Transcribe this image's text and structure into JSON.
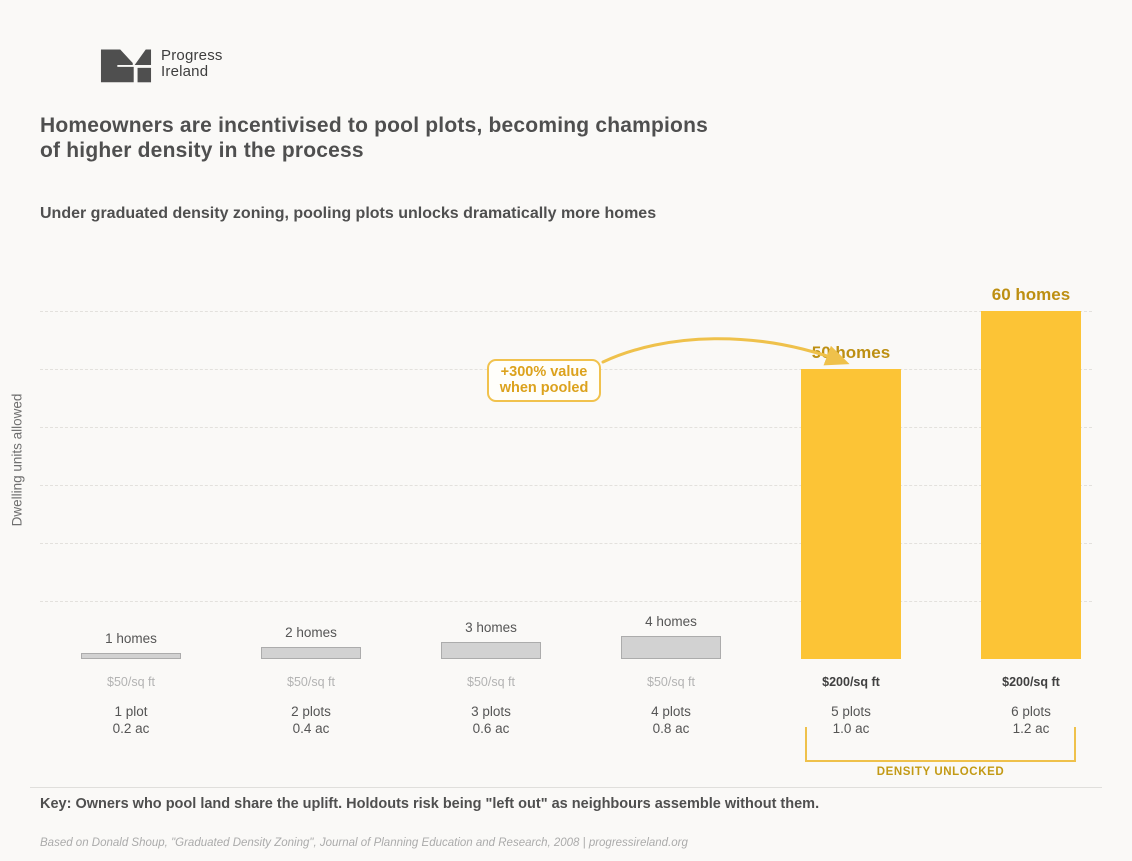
{
  "brand": {
    "name_line1": "Progress",
    "name_line2": "Ireland",
    "logo_color": "#4F4F4F"
  },
  "title": "Homeowners are incentivised to pool plots, becoming champions of higher density in the process",
  "subtitle": "Under graduated density zoning, pooling plots unlocks dramatically more homes",
  "chart_data": {
    "type": "bar",
    "title": "Homeowners are incentivised to pool plots, becoming champions of higher density in the process",
    "subtitle": "Under graduated density zoning, pooling plots unlocks dramatically more homes",
    "ylabel": "Dwelling units allowed",
    "xlabel": "",
    "ylim": [
      0,
      60
    ],
    "gridline_values": [
      10,
      20,
      30,
      40,
      50,
      60
    ],
    "grid": "dashed",
    "categories": [
      "1 plot 0.2 ac",
      "2 plots 0.4 ac",
      "3 plots 0.6 ac",
      "4 plots 0.8 ac",
      "5 plots 1.0 ac",
      "6 plots 1.2 ac"
    ],
    "values": [
      1,
      2,
      3,
      4,
      50,
      60
    ],
    "bars": [
      {
        "homes_label": "1 homes",
        "value": 1,
        "price": "$50/sq ft",
        "plots": "1 plot",
        "acres": "0.2 ac",
        "pooled": false
      },
      {
        "homes_label": "2 homes",
        "value": 2,
        "price": "$50/sq ft",
        "plots": "2 plots",
        "acres": "0.4 ac",
        "pooled": false
      },
      {
        "homes_label": "3 homes",
        "value": 3,
        "price": "$50/sq ft",
        "plots": "3 plots",
        "acres": "0.6 ac",
        "pooled": false
      },
      {
        "homes_label": "4 homes",
        "value": 4,
        "price": "$50/sq ft",
        "plots": "4 plots",
        "acres": "0.8 ac",
        "pooled": false
      },
      {
        "homes_label": "50 homes",
        "value": 50,
        "price": "$200/sq ft",
        "plots": "5 plots",
        "acres": "1.0 ac",
        "pooled": true
      },
      {
        "homes_label": "60 homes",
        "value": 60,
        "price": "$200/sq ft",
        "plots": "6 plots",
        "acres": "1.2 ac",
        "pooled": true
      }
    ],
    "bar_color_default": "#D2D2D2",
    "bar_color_pooled": "#FCC436",
    "accent_gold": "#EFC14B",
    "accent_gold_text": "#BD8F12"
  },
  "annotation": {
    "line1": "+300% value",
    "line2": "when pooled"
  },
  "bracket": {
    "label": "DENSITY UNLOCKED"
  },
  "key_text": "Key: Owners who pool land share the uplift. Holdouts risk being \"left out\" as neighbours assemble without them.",
  "source_text": "Based on Donald Shoup, \"Graduated Density Zoning\", Journal of Planning Education and Research, 2008  |  progressireland.org"
}
